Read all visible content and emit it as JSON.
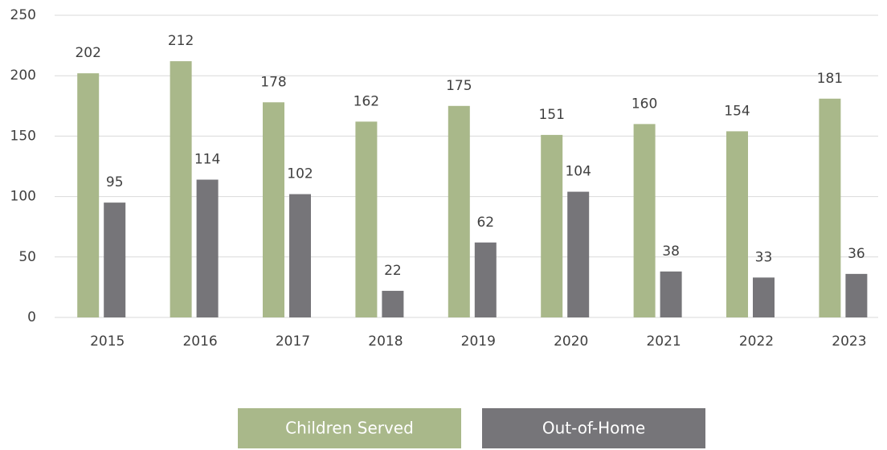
{
  "chart_data": {
    "type": "bar",
    "categories": [
      "2015",
      "2016",
      "2017",
      "2018",
      "2019",
      "2020",
      "2021",
      "2022",
      "2023"
    ],
    "series": [
      {
        "name": "Children Served",
        "color": "#a9b88a",
        "values": [
          202,
          212,
          178,
          162,
          175,
          151,
          160,
          154,
          181
        ]
      },
      {
        "name": "Out-of-Home",
        "color": "#767579",
        "values": [
          95,
          114,
          102,
          22,
          62,
          104,
          38,
          33,
          36
        ]
      }
    ],
    "ylim": [
      0,
      250
    ],
    "yticks": [
      0,
      50,
      100,
      150,
      200,
      250
    ],
    "grid": true,
    "legend": "bottom"
  }
}
